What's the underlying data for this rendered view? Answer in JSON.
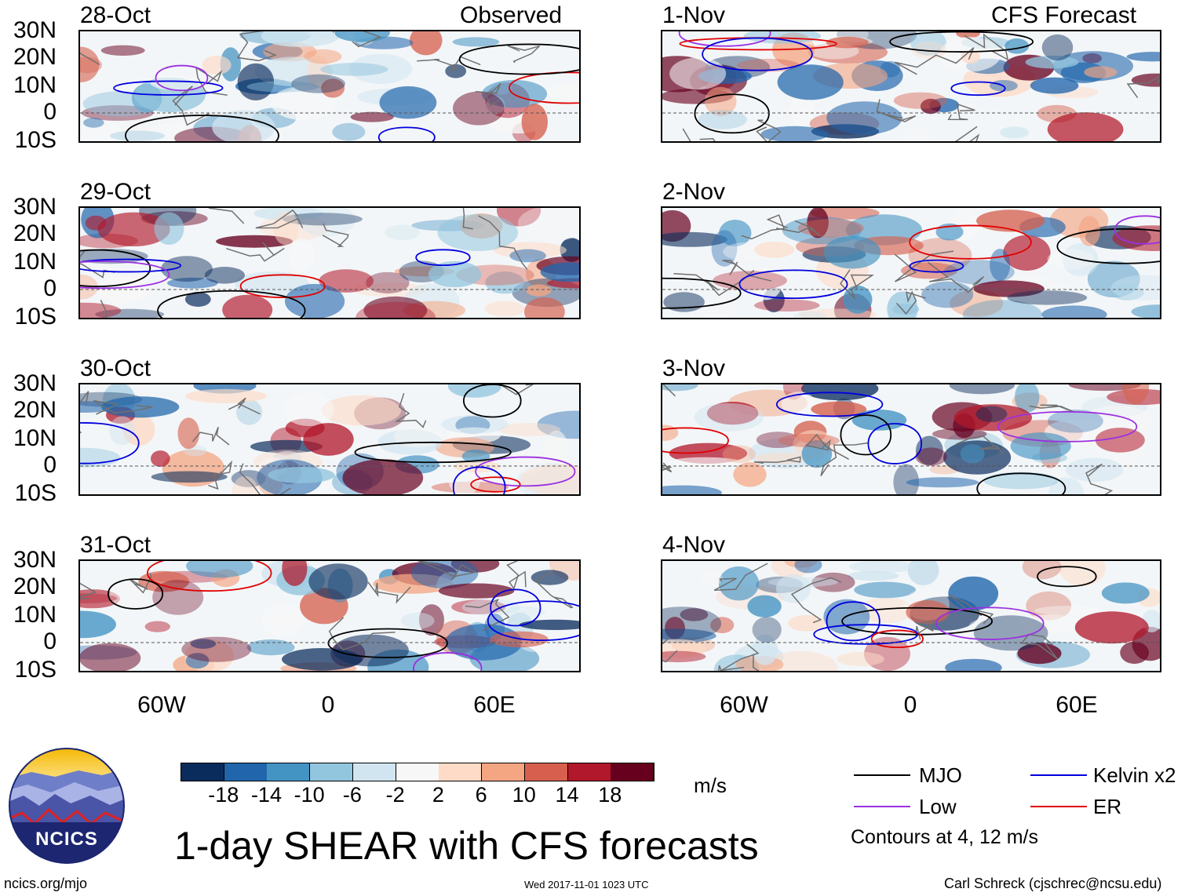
{
  "observed_label": "Observed",
  "forecast_label": "CFS Forecast",
  "observed_dates": [
    "28-Oct",
    "29-Oct",
    "30-Oct",
    "31-Oct"
  ],
  "forecast_dates": [
    "1-Nov",
    "2-Nov",
    "3-Nov",
    "4-Nov"
  ],
  "lat_labels": [
    "30N",
    "20N",
    "10N",
    "0",
    "10S"
  ],
  "lon_labels": [
    "60W",
    "0",
    "60E"
  ],
  "colorbar": {
    "colors": [
      "#0a2c5c",
      "#2166ac",
      "#4393c3",
      "#92c5de",
      "#d1e5f0",
      "#f7f7f7",
      "#fddbc7",
      "#f4a582",
      "#d6604d",
      "#b2182b",
      "#67001f"
    ],
    "labels": [
      "-18",
      "-14",
      "-10",
      "-6",
      "-2",
      "2",
      "6",
      "10",
      "14",
      "18"
    ],
    "unit": "m/s"
  },
  "legend": {
    "items": [
      {
        "label": "MJO",
        "color": "#000000"
      },
      {
        "label": "Kelvin x2",
        "color": "#0000dd"
      },
      {
        "label": "Low",
        "color": "#9b30e0"
      },
      {
        "label": "ER",
        "color": "#e00000"
      }
    ],
    "note": "Contours at 4, 12 m/s"
  },
  "logo_text": "NCICS",
  "main_title": "1-day SHEAR with CFS forecasts",
  "footer": {
    "url": "ncics.org/mjo",
    "timestamp": "Wed 2017-11-01 1023 UTC",
    "author": "Carl Schreck (cjschrec@ncsu.edu)"
  }
}
